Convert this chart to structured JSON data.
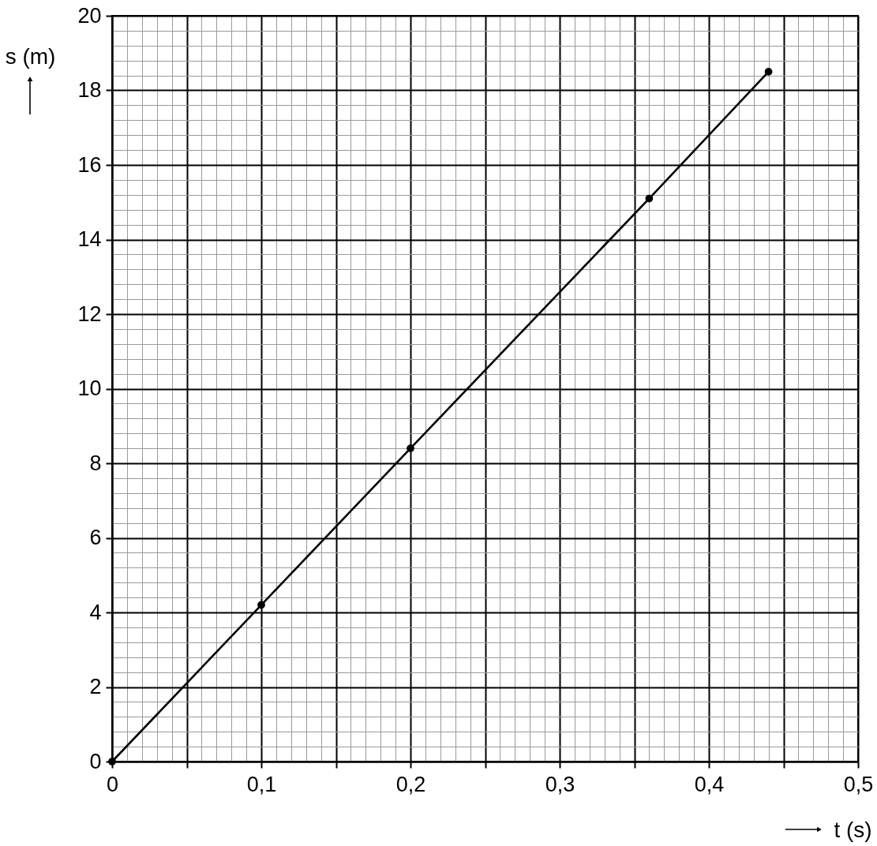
{
  "chart_data": {
    "type": "line",
    "xlabel": "t (s)",
    "ylabel": "s (m)",
    "x": [
      0,
      0.1,
      0.2,
      0.36,
      0.44
    ],
    "series": [
      {
        "color": "#000000",
        "values": [
          0,
          4.2,
          8.4,
          15.1,
          18.5
        ]
      }
    ],
    "xlim": [
      0,
      0.5
    ],
    "ylim": [
      0,
      20
    ],
    "xticks": [
      0,
      {
        "value": 0.05,
        "label": null
      },
      {
        "value": 0.1,
        "label": "0,1"
      },
      {
        "value": 0.15,
        "label": null
      },
      {
        "value": 0.2,
        "label": "0,2"
      },
      {
        "value": 0.25,
        "label": null
      },
      {
        "value": 0.3,
        "label": "0,3"
      },
      {
        "value": 0.35,
        "label": null
      },
      {
        "value": 0.4,
        "label": "0,4"
      },
      {
        "value": 0.45,
        "label": null
      },
      {
        "value": 0.5,
        "label": "0,5"
      }
    ],
    "yticks": [
      0,
      2,
      4,
      6,
      8,
      10,
      12,
      14,
      16,
      18,
      20
    ],
    "grid": true,
    "marker": "circle",
    "line_style": "solid"
  }
}
